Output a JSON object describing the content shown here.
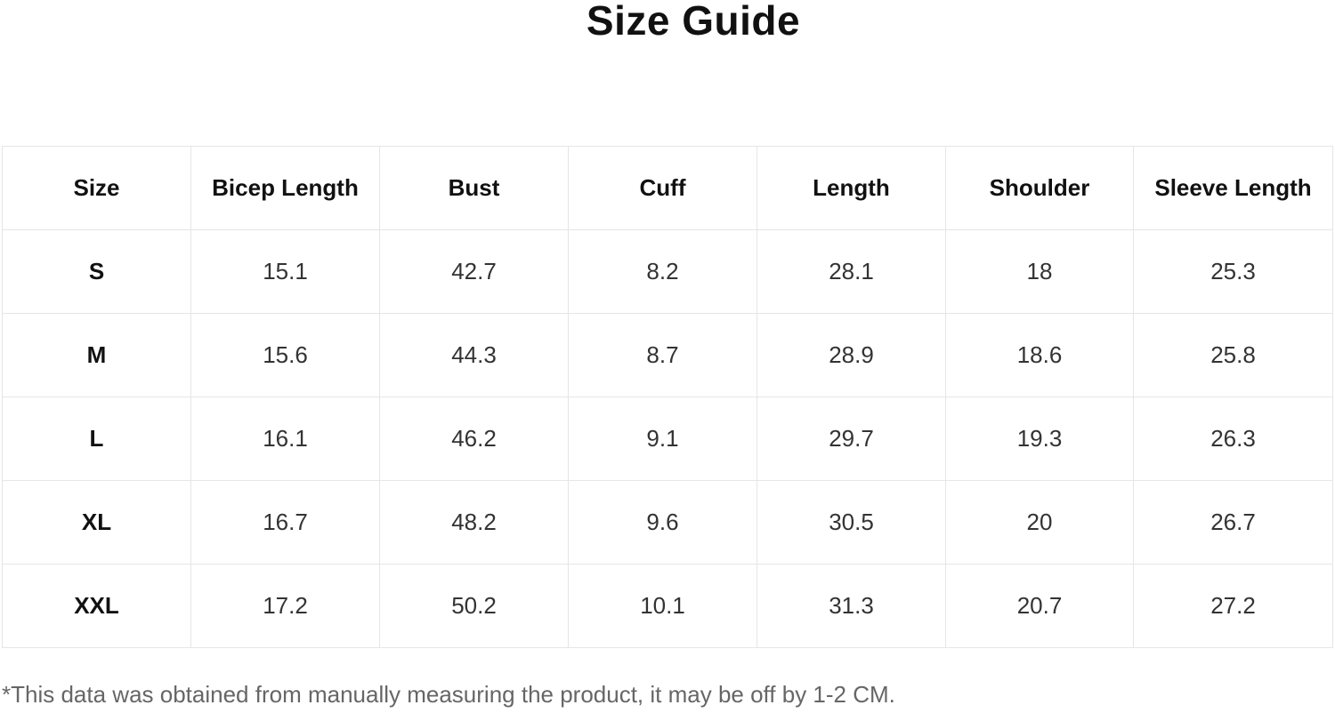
{
  "title": "Size Guide",
  "table": {
    "headers": [
      "Size",
      "Bicep Length",
      "Bust",
      "Cuff",
      "Length",
      "Shoulder",
      "Sleeve Length"
    ],
    "rows": [
      [
        "S",
        "15.1",
        "42.7",
        "8.2",
        "28.1",
        "18",
        "25.3"
      ],
      [
        "M",
        "15.6",
        "44.3",
        "8.7",
        "28.9",
        "18.6",
        "25.8"
      ],
      [
        "L",
        "16.1",
        "46.2",
        "9.1",
        "29.7",
        "19.3",
        "26.3"
      ],
      [
        "XL",
        "16.7",
        "48.2",
        "9.6",
        "30.5",
        "20",
        "26.7"
      ],
      [
        "XXL",
        "17.2",
        "50.2",
        "10.1",
        "31.3",
        "20.7",
        "27.2"
      ]
    ]
  },
  "note": "*This data was obtained from manually measuring the product, it may be off by 1-2 CM."
}
